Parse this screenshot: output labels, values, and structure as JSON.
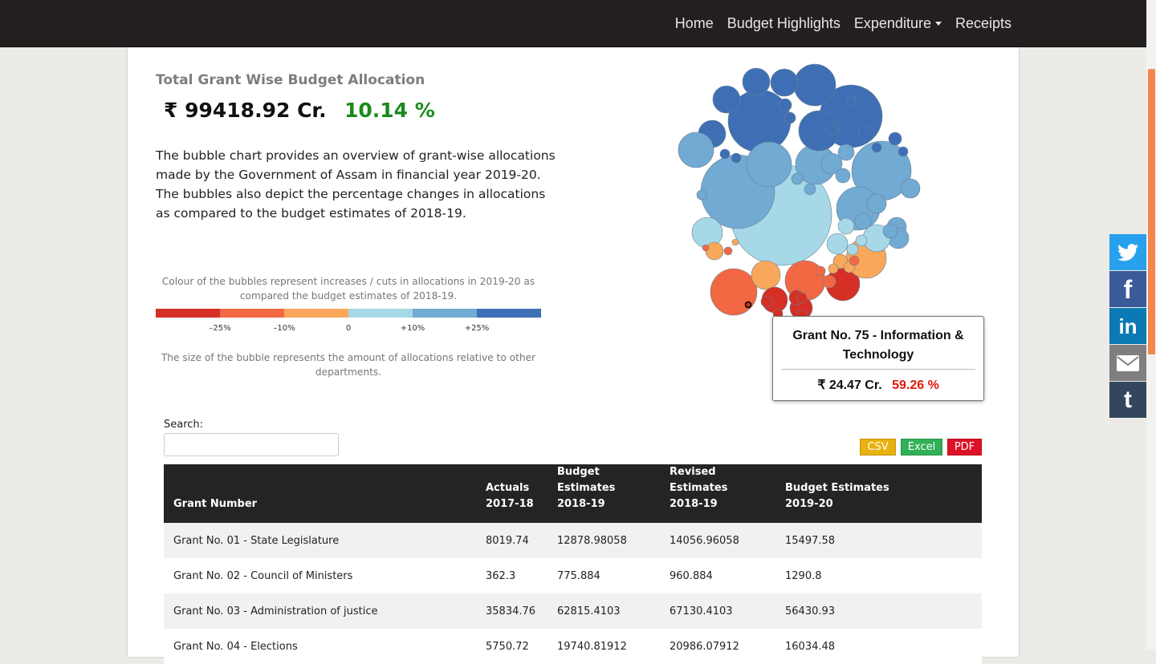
{
  "nav": {
    "items": [
      {
        "label": "Home"
      },
      {
        "label": "Budget Highlights"
      },
      {
        "label": "Expenditure",
        "dropdown": true
      },
      {
        "label": "Receipts"
      }
    ]
  },
  "summary": {
    "title": "Total Grant Wise Budget Allocation",
    "total": "₹ 99418.92 Cr.",
    "change": "10.14 %",
    "change_color": "#198a1c",
    "description": "The bubble chart provides an overview of grant-wise allocations made by the Government of Assam in financial year 2019-20. The bubbles also depict the percentage changes in allocations as compared to the budget estimates of 2018-19."
  },
  "legend": {
    "colour_note": "Colour of the bubbles represent increases / cuts in allocations in 2019-20 as compared the budget estimates of 2018-19.",
    "size_note": "The size of the bubble represents the amount of allocations relative to other departments.",
    "scale_colors": [
      "#d52f26",
      "#f26843",
      "#f9a85b",
      "#a6d8e8",
      "#71aad3",
      "#3e6fb5"
    ],
    "scale_labels": [
      "–25%",
      "–10%",
      "0",
      "+10%",
      "+25%"
    ]
  },
  "tooltip": {
    "title": "Grant No. 75 - Information & Technology",
    "amount": "₹ 24.47 Cr.",
    "change": "59.26 %",
    "change_color": "#e3170a"
  },
  "search": {
    "label": "Search:",
    "value": ""
  },
  "export": {
    "csv": "CSV",
    "excel": "Excel",
    "pdf": "PDF"
  },
  "table": {
    "headers": [
      {
        "line1": "",
        "line2": "Grant Number"
      },
      {
        "line1": "Actuals",
        "line2": "2017-18"
      },
      {
        "line1": "Budget Estimates",
        "line2": "2018-19"
      },
      {
        "line1": "Revised Estimates",
        "line2": "2018-19"
      },
      {
        "line1": "Budget Estimates",
        "line2": "2019-20"
      }
    ],
    "rows": [
      [
        "Grant No. 01 - State Legislature",
        "8019.74",
        "12878.98058",
        "14056.96058",
        "15497.58"
      ],
      [
        "Grant No. 02 - Council of Ministers",
        "362.3",
        "775.884",
        "960.884",
        "1290.8"
      ],
      [
        "Grant No. 03 - Administration of justice",
        "35834.76",
        "62815.4103",
        "67130.4103",
        "56430.93"
      ],
      [
        "Grant No. 04 - Elections",
        "5750.72",
        "19740.81912",
        "20986.07912",
        "16034.48"
      ]
    ]
  },
  "share": [
    {
      "network": "twitter",
      "color": "#27a1ec"
    },
    {
      "network": "facebook",
      "color": "#3b5a9a"
    },
    {
      "network": "linkedin",
      "color": "#0b79b4"
    },
    {
      "network": "email",
      "color": "#7f7f7f"
    },
    {
      "network": "tumblr",
      "color": "#33465d"
    }
  ]
}
